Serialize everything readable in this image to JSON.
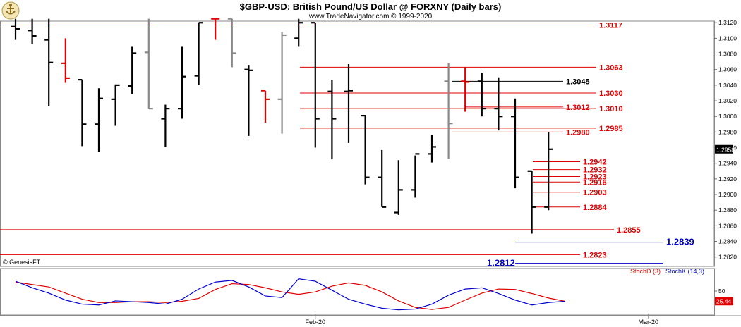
{
  "header": {
    "title": "$GBP-USD:  British Pound/US Dollar @ FORXNY  (Daily bars)",
    "subtitle": "www.TradeNavigator.com © 1999-2020"
  },
  "footer": {
    "copyright": "© GenesisFT",
    "stoch_d_label": "StochD (3)",
    "stoch_k_label": "StochK (14,3)"
  },
  "colors": {
    "bar": "#000000",
    "bar_gray": "#888888",
    "bar_red": "#e00000",
    "level_red": "#e00000",
    "level_black": "#000000",
    "level_blue": "#0000cc",
    "stoch_d": "#e00000",
    "stoch_k": "#0000cc"
  },
  "chart_data": [
    {
      "type": "ohlc",
      "title": "$GBP-USD:  British Pound/US Dollar @ FORXNY  (Daily bars)",
      "ylim": [
        1.2808,
        1.3122
      ],
      "yticks": [
        "1.3120",
        "1.3100",
        "1.3080",
        "1.3060",
        "1.3040",
        "1.3020",
        "1.3000",
        "1.2980",
        "1.2960",
        "1.2940",
        "1.2920",
        "1.2900",
        "1.2880",
        "1.2860",
        "1.2840",
        "1.2820"
      ],
      "ytick_values": [
        1.312,
        1.31,
        1.308,
        1.306,
        1.304,
        1.302,
        1.3,
        1.298,
        1.296,
        1.294,
        1.292,
        1.29,
        1.288,
        1.286,
        1.284,
        1.282
      ],
      "last_price_label": "1.2958",
      "last_price": 1.2958,
      "x_labels": [
        {
          "label": "Feb-20",
          "bar_index": 18
        },
        {
          "label": "Mar-20",
          "bar_index": 38
        }
      ],
      "bars": [
        {
          "o": 1.3115,
          "h": 1.3125,
          "l": 1.3098,
          "c": 1.3112,
          "color": "black"
        },
        {
          "o": 1.311,
          "h": 1.3125,
          "l": 1.3093,
          "c": 1.3103,
          "color": "black"
        },
        {
          "o": 1.3098,
          "h": 1.3125,
          "l": 1.3013,
          "c": 1.3069,
          "color": "black"
        },
        {
          "o": 1.3068,
          "h": 1.31,
          "l": 1.3043,
          "c": 1.3049,
          "color": "red"
        },
        {
          "o": 1.3047,
          "h": 1.3047,
          "l": 1.2962,
          "c": 1.299,
          "color": "black"
        },
        {
          "o": 1.299,
          "h": 1.3036,
          "l": 1.2955,
          "c": 1.3023,
          "color": "black"
        },
        {
          "o": 1.3022,
          "h": 1.3041,
          "l": 1.2988,
          "c": 1.304,
          "color": "black"
        },
        {
          "o": 1.3039,
          "h": 1.309,
          "l": 1.3029,
          "c": 1.3081,
          "color": "black"
        },
        {
          "o": 1.3082,
          "h": 1.3125,
          "l": 1.301,
          "c": 1.301,
          "color": "gray"
        },
        {
          "o": 1.2997,
          "h": 1.3015,
          "l": 1.2961,
          "c": 1.301,
          "color": "black"
        },
        {
          "o": 1.301,
          "h": 1.309,
          "l": 1.2997,
          "c": 1.3051,
          "color": "black"
        },
        {
          "o": 1.3052,
          "h": 1.312,
          "l": 1.304,
          "c": 1.312,
          "color": "black"
        },
        {
          "o": 1.3125,
          "h": 1.3125,
          "l": 1.3098,
          "c": 1.3125,
          "color": "red"
        },
        {
          "o": 1.3125,
          "h": 1.3125,
          "l": 1.3063,
          "c": 1.3081,
          "color": "gray"
        },
        {
          "o": 1.306,
          "h": 1.3066,
          "l": 1.2975,
          "c": 1.3059,
          "color": "black"
        },
        {
          "o": 1.3033,
          "h": 1.3033,
          "l": 1.2992,
          "c": 1.3022,
          "color": "red"
        },
        {
          "o": 1.3022,
          "h": 1.3108,
          "l": 1.2978,
          "c": 1.3104,
          "color": "gray"
        },
        {
          "o": 1.31,
          "h": 1.3125,
          "l": 1.309,
          "c": 1.312,
          "color": "black"
        },
        {
          "o": 1.312,
          "h": 1.312,
          "l": 1.296,
          "c": 1.2997,
          "color": "black"
        },
        {
          "o": 1.3032,
          "h": 1.3047,
          "l": 1.2945,
          "c": 1.2997,
          "color": "black"
        },
        {
          "o": 1.3032,
          "h": 1.3067,
          "l": 1.2966,
          "c": 1.3033,
          "color": "black"
        },
        {
          "o": 1.3001,
          "h": 1.3002,
          "l": 1.2913,
          "c": 1.2922,
          "color": "black"
        },
        {
          "o": 1.2922,
          "h": 1.2957,
          "l": 1.2884,
          "c": 1.2884,
          "color": "black"
        },
        {
          "o": 1.2877,
          "h": 1.2944,
          "l": 1.2874,
          "c": 1.2906,
          "color": "black"
        },
        {
          "o": 1.2906,
          "h": 1.295,
          "l": 1.2896,
          "c": 1.2952,
          "color": "black"
        },
        {
          "o": 1.2952,
          "h": 1.2976,
          "l": 1.2941,
          "c": 1.2961,
          "color": "black"
        },
        {
          "o": 1.3045,
          "h": 1.3068,
          "l": 1.2946,
          "c": 1.2991,
          "color": "gray"
        },
        {
          "o": 1.3045,
          "h": 1.3063,
          "l": 1.3006,
          "c": 1.3044,
          "color": "red"
        },
        {
          "o": 1.3045,
          "h": 1.3056,
          "l": 1.3,
          "c": 1.301,
          "color": "black"
        },
        {
          "o": 1.301,
          "h": 1.305,
          "l": 1.2982,
          "c": 1.3,
          "color": "black"
        },
        {
          "o": 1.3,
          "h": 1.3023,
          "l": 1.2908,
          "c": 1.2922,
          "color": "black"
        },
        {
          "o": 1.293,
          "h": 1.293,
          "l": 1.285,
          "c": 1.2884,
          "color": "black"
        },
        {
          "o": 1.2884,
          "h": 1.298,
          "l": 1.288,
          "c": 1.2958,
          "color": "black"
        }
      ],
      "levels": [
        {
          "value": 1.3117,
          "label": "1.3117",
          "color": "red"
        },
        {
          "value": 1.3063,
          "label": "1.3063",
          "color": "red"
        },
        {
          "value": 1.3045,
          "label": "1.3045",
          "color": "black"
        },
        {
          "value": 1.303,
          "label": "1.3030",
          "color": "red"
        },
        {
          "value": 1.3012,
          "label": "1.3012",
          "color": "red"
        },
        {
          "value": 1.301,
          "label": "1.3010",
          "color": "red"
        },
        {
          "value": 1.2985,
          "label": "1.2985",
          "color": "red"
        },
        {
          "value": 1.298,
          "label": "1.2980",
          "color": "red"
        },
        {
          "value": 1.2942,
          "label": "1.2942",
          "color": "red"
        },
        {
          "value": 1.2932,
          "label": "1.2932",
          "color": "red"
        },
        {
          "value": 1.2923,
          "label": "1.2923",
          "color": "red"
        },
        {
          "value": 1.2916,
          "label": "1.2916",
          "color": "red"
        },
        {
          "value": 1.2903,
          "label": "1.2903",
          "color": "red"
        },
        {
          "value": 1.2884,
          "label": "1.2884",
          "color": "red"
        },
        {
          "value": 1.2855,
          "label": "1.2855",
          "color": "red"
        },
        {
          "value": 1.2839,
          "label": "1.2839",
          "color": "blue"
        },
        {
          "value": 1.2823,
          "label": "1.2823",
          "color": "red"
        },
        {
          "value": 1.2812,
          "label": "1.2812",
          "color": "blue"
        }
      ]
    },
    {
      "type": "line",
      "title": "",
      "ylim": [
        0,
        100
      ],
      "yticks": [
        "50"
      ],
      "ytick_values": [
        50
      ],
      "last_value_label": "25.44",
      "last_value": 25.44,
      "series": [
        {
          "name": "StochD (3)",
          "color": "red",
          "values": [
            72,
            66,
            60,
            45,
            30,
            22,
            22,
            24,
            24,
            22,
            25,
            32,
            54,
            68,
            66,
            58,
            48,
            42,
            48,
            62,
            70,
            64,
            48,
            26,
            10,
            5,
            10,
            28,
            45,
            55,
            54,
            44,
            33,
            25
          ]
        },
        {
          "name": "StochK (14,3)",
          "color": "blue",
          "values": [
            74,
            58,
            45,
            28,
            18,
            16,
            26,
            24,
            22,
            18,
            30,
            55,
            72,
            76,
            60,
            38,
            34,
            80,
            74,
            52,
            30,
            18,
            8,
            4,
            6,
            18,
            40,
            55,
            58,
            44,
            28,
            16,
            22,
            25
          ]
        }
      ]
    }
  ]
}
